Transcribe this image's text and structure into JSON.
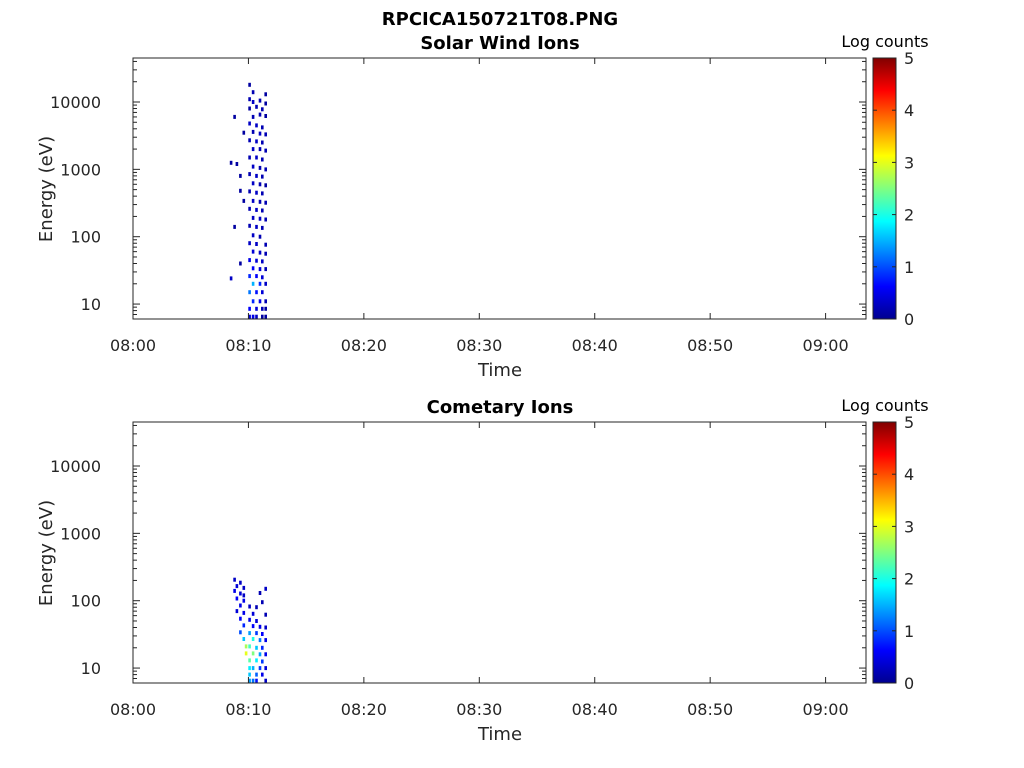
{
  "figure": {
    "title": "RPCICA150721T08.PNG"
  },
  "chart_data": [
    {
      "type": "heatmap",
      "title": "Solar Wind Ions",
      "xlabel": "Time",
      "ylabel": "Energy (eV)",
      "x_ticks": [
        "08:00",
        "08:10",
        "08:20",
        "08:30",
        "08:40",
        "08:50",
        "09:00"
      ],
      "x_range_minutes": [
        0,
        63.5
      ],
      "y_scale": "log",
      "y_ticks": [
        "10",
        "100",
        "1000",
        "10000"
      ],
      "y_range": [
        6,
        45000
      ],
      "colorbar": {
        "label": "Log counts",
        "ticks": [
          "0",
          "1",
          "2",
          "3",
          "4",
          "5"
        ],
        "range": [
          0,
          5
        ]
      },
      "colormap": [
        "#00008f",
        "#0000ff",
        "#0080ff",
        "#00ffff",
        "#80ff80",
        "#ffff00",
        "#ff8000",
        "#ff0000",
        "#800000"
      ],
      "cells": [
        [
          10.1,
          18000,
          0.1
        ],
        [
          10.4,
          14000,
          0.2
        ],
        [
          11.5,
          13000,
          0.1
        ],
        [
          10.1,
          11000,
          0.2
        ],
        [
          10.4,
          10000,
          0.3
        ],
        [
          11.0,
          10500,
          0.2
        ],
        [
          11.5,
          9500,
          0.1
        ],
        [
          10.1,
          8000,
          0.1
        ],
        [
          10.7,
          8500,
          0.2
        ],
        [
          11.2,
          7800,
          0.2
        ],
        [
          8.8,
          6000,
          0.1
        ],
        [
          10.4,
          6000,
          0.2
        ],
        [
          11.0,
          6500,
          0.2
        ],
        [
          11.5,
          6200,
          0.1
        ],
        [
          10.1,
          4800,
          0.3
        ],
        [
          10.7,
          4500,
          0.3
        ],
        [
          11.2,
          4200,
          0.2
        ],
        [
          9.6,
          3500,
          0.1
        ],
        [
          10.4,
          3600,
          0.2
        ],
        [
          11.0,
          3400,
          0.3
        ],
        [
          11.5,
          3300,
          0.2
        ],
        [
          10.1,
          2700,
          0.2
        ],
        [
          10.7,
          2600,
          0.3
        ],
        [
          11.2,
          2500,
          0.2
        ],
        [
          10.4,
          2000,
          0.3
        ],
        [
          11.0,
          2000,
          0.2
        ],
        [
          11.5,
          1900,
          0.2
        ],
        [
          8.5,
          1250,
          0.1
        ],
        [
          9.0,
          1200,
          0.1
        ],
        [
          10.1,
          1500,
          0.2
        ],
        [
          10.7,
          1500,
          0.3
        ],
        [
          11.2,
          1400,
          0.2
        ],
        [
          10.4,
          1100,
          0.3
        ],
        [
          11.0,
          1050,
          0.2
        ],
        [
          11.5,
          1000,
          0.2
        ],
        [
          9.3,
          800,
          0.1
        ],
        [
          10.1,
          850,
          0.2
        ],
        [
          10.7,
          800,
          0.3
        ],
        [
          11.2,
          780,
          0.2
        ],
        [
          10.4,
          620,
          0.3
        ],
        [
          11.0,
          600,
          0.2
        ],
        [
          11.5,
          580,
          0.1
        ],
        [
          9.3,
          480,
          0.1
        ],
        [
          10.1,
          470,
          0.2
        ],
        [
          10.7,
          450,
          0.3
        ],
        [
          11.2,
          440,
          0.2
        ],
        [
          9.6,
          340,
          0.1
        ],
        [
          10.4,
          340,
          0.3
        ],
        [
          11.0,
          330,
          0.2
        ],
        [
          11.5,
          320,
          0.2
        ],
        [
          10.1,
          260,
          0.2
        ],
        [
          10.7,
          250,
          0.3
        ],
        [
          11.2,
          245,
          0.2
        ],
        [
          10.4,
          190,
          0.3
        ],
        [
          11.0,
          185,
          0.3
        ],
        [
          11.5,
          180,
          0.2
        ],
        [
          8.8,
          140,
          0.1
        ],
        [
          10.1,
          145,
          0.2
        ],
        [
          10.7,
          140,
          0.3
        ],
        [
          11.2,
          135,
          0.2
        ],
        [
          10.4,
          105,
          0.3
        ],
        [
          11.0,
          100,
          0.2
        ],
        [
          10.1,
          80,
          0.3
        ],
        [
          10.7,
          78,
          0.3
        ],
        [
          11.5,
          76,
          0.2
        ],
        [
          10.4,
          60,
          0.4
        ],
        [
          11.0,
          58,
          0.3
        ],
        [
          11.5,
          56,
          0.2
        ],
        [
          10.1,
          45,
          0.5
        ],
        [
          10.7,
          44,
          0.4
        ],
        [
          11.2,
          43,
          0.3
        ],
        [
          9.3,
          40,
          0.1
        ],
        [
          10.4,
          34,
          0.6
        ],
        [
          11.0,
          33,
          0.4
        ],
        [
          11.5,
          33,
          0.2
        ],
        [
          10.1,
          26,
          0.8
        ],
        [
          10.7,
          26,
          0.6
        ],
        [
          11.2,
          25,
          0.4
        ],
        [
          8.5,
          24,
          0.3
        ],
        [
          10.4,
          20,
          1.5
        ],
        [
          11.0,
          20,
          0.8
        ],
        [
          11.5,
          20,
          0.3
        ],
        [
          10.1,
          15,
          1.2
        ],
        [
          10.7,
          15,
          0.7
        ],
        [
          11.2,
          15,
          0.4
        ],
        [
          10.4,
          11,
          0.8
        ],
        [
          11.0,
          11,
          0.5
        ],
        [
          11.5,
          11,
          0.2
        ],
        [
          10.1,
          8.5,
          0.6
        ],
        [
          10.7,
          8.5,
          0.4
        ],
        [
          11.2,
          8.5,
          0.2
        ],
        [
          11.5,
          8.5,
          0.1
        ],
        [
          10.1,
          6.5,
          0.4
        ],
        [
          10.4,
          6.5,
          0.5
        ],
        [
          10.7,
          6.5,
          0.3
        ],
        [
          11.2,
          6.5,
          0.1
        ],
        [
          11.5,
          6.5,
          0.1
        ]
      ]
    },
    {
      "type": "heatmap",
      "title": "Cometary Ions",
      "xlabel": "Time",
      "ylabel": "Energy (eV)",
      "x_ticks": [
        "08:00",
        "08:10",
        "08:20",
        "08:30",
        "08:40",
        "08:50",
        "09:00"
      ],
      "x_range_minutes": [
        0,
        63.5
      ],
      "y_scale": "log",
      "y_ticks": [
        "10",
        "100",
        "1000",
        "10000"
      ],
      "y_range": [
        6,
        45000
      ],
      "colorbar": {
        "label": "Log counts",
        "ticks": [
          "0",
          "1",
          "2",
          "3",
          "4",
          "5"
        ],
        "range": [
          0,
          5
        ]
      },
      "colormap": [
        "#00008f",
        "#0000ff",
        "#0080ff",
        "#00ffff",
        "#80ff80",
        "#ffff00",
        "#ff8000",
        "#ff0000",
        "#800000"
      ],
      "cells": [
        [
          8.8,
          205,
          0.3
        ],
        [
          9.3,
          185,
          0.3
        ],
        [
          11.5,
          150,
          0.3
        ],
        [
          9.0,
          165,
          0.4
        ],
        [
          9.6,
          155,
          0.3
        ],
        [
          11.0,
          130,
          0.2
        ],
        [
          8.8,
          140,
          0.5
        ],
        [
          9.3,
          128,
          0.4
        ],
        [
          9.6,
          120,
          0.3
        ],
        [
          9.0,
          108,
          0.6
        ],
        [
          9.6,
          100,
          0.5
        ],
        [
          11.2,
          95,
          0.2
        ],
        [
          9.3,
          85,
          0.5
        ],
        [
          10.1,
          82,
          0.3
        ],
        [
          10.7,
          80,
          0.2
        ],
        [
          9.0,
          70,
          0.4
        ],
        [
          9.6,
          66,
          0.5
        ],
        [
          10.4,
          64,
          0.4
        ],
        [
          11.5,
          62,
          0.2
        ],
        [
          9.3,
          54,
          0.6
        ],
        [
          10.1,
          52,
          0.5
        ],
        [
          10.7,
          50,
          0.4
        ],
        [
          9.6,
          43,
          0.8
        ],
        [
          10.4,
          42,
          0.6
        ],
        [
          11.0,
          41,
          0.5
        ],
        [
          11.5,
          40,
          0.3
        ],
        [
          9.3,
          34,
          1.0
        ],
        [
          10.1,
          33,
          1.4
        ],
        [
          10.7,
          33,
          0.9
        ],
        [
          11.2,
          32,
          0.6
        ],
        [
          9.6,
          27,
          1.6
        ],
        [
          10.4,
          27,
          2.0
        ],
        [
          11.0,
          26,
          1.2
        ],
        [
          11.5,
          26,
          0.5
        ],
        [
          9.8,
          21,
          2.7
        ],
        [
          10.1,
          21,
          2.2
        ],
        [
          10.7,
          20,
          1.6
        ],
        [
          11.2,
          20,
          0.8
        ],
        [
          9.8,
          16.5,
          3.0
        ],
        [
          10.4,
          16.5,
          2.5
        ],
        [
          11.0,
          16,
          1.4
        ],
        [
          11.5,
          16,
          0.5
        ],
        [
          10.1,
          13,
          2.3
        ],
        [
          10.7,
          13,
          1.8
        ],
        [
          11.2,
          12.5,
          0.9
        ],
        [
          10.1,
          10,
          1.8
        ],
        [
          10.4,
          10,
          1.5
        ],
        [
          11.0,
          10,
          0.9
        ],
        [
          11.5,
          10,
          0.4
        ],
        [
          10.1,
          8,
          1.6
        ],
        [
          10.7,
          8,
          1.1
        ],
        [
          11.2,
          8,
          0.5
        ],
        [
          10.1,
          6.5,
          1.4
        ],
        [
          10.4,
          6.5,
          1.2
        ],
        [
          10.7,
          6.5,
          0.7
        ],
        [
          11.5,
          6.5,
          0.3
        ]
      ]
    }
  ]
}
